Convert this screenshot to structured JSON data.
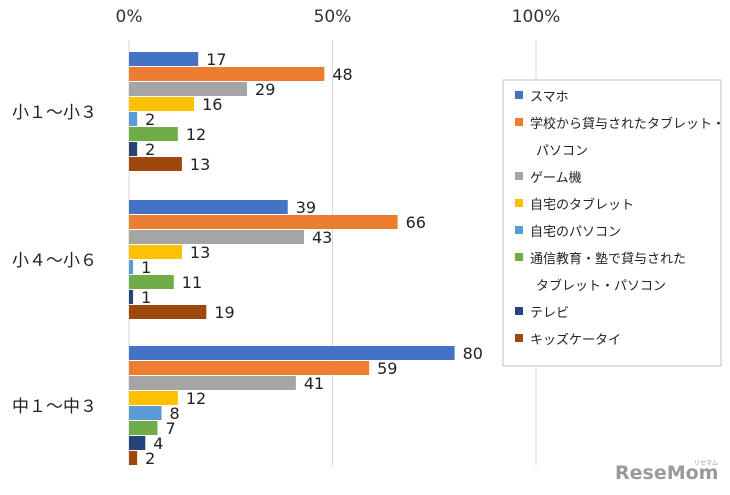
{
  "chart_data": {
    "type": "bar",
    "orientation": "horizontal",
    "categories": [
      "小１～小３",
      "小４～小６",
      "中１～中３"
    ],
    "x_ticks": [
      "0%",
      "50%",
      "100%"
    ],
    "xlim": [
      0,
      100
    ],
    "grid": true,
    "legend_position": "right",
    "series": [
      {
        "name": "スマホ",
        "color": "#4472C4",
        "values": [
          17,
          39,
          80
        ]
      },
      {
        "name": "学校から貸与されたタブレット・パソコン",
        "color": "#ED7D31",
        "values": [
          48,
          66,
          59
        ]
      },
      {
        "name": "ゲーム機",
        "color": "#A5A5A5",
        "values": [
          29,
          43,
          41
        ]
      },
      {
        "name": "自宅のタブレット",
        "color": "#FFC000",
        "values": [
          16,
          13,
          12
        ]
      },
      {
        "name": "自宅のパソコン",
        "color": "#5B9BD5",
        "values": [
          2,
          1,
          8
        ]
      },
      {
        "name": "通信教育・塾で貸与されたタブレット・パソコン",
        "color": "#70AD47",
        "values": [
          12,
          11,
          7
        ]
      },
      {
        "name": "テレビ",
        "color": "#264478",
        "values": [
          2,
          1,
          4
        ]
      },
      {
        "name": "キッズケータイ",
        "color": "#9E480E",
        "values": [
          13,
          19,
          2
        ]
      }
    ],
    "legend_lines": [
      [
        "スマホ"
      ],
      [
        "学校から貸与されたタブレット・",
        "パソコン"
      ],
      [
        "ゲーム機"
      ],
      [
        "自宅のタブレット"
      ],
      [
        "自宅のパソコン"
      ],
      [
        "通信教育・塾で貸与された",
        "タブレット・パソコン"
      ],
      [
        "テレビ"
      ],
      [
        "キッズケータイ"
      ]
    ]
  },
  "watermark": {
    "main": "ReseMom",
    "small": "リセマム"
  }
}
